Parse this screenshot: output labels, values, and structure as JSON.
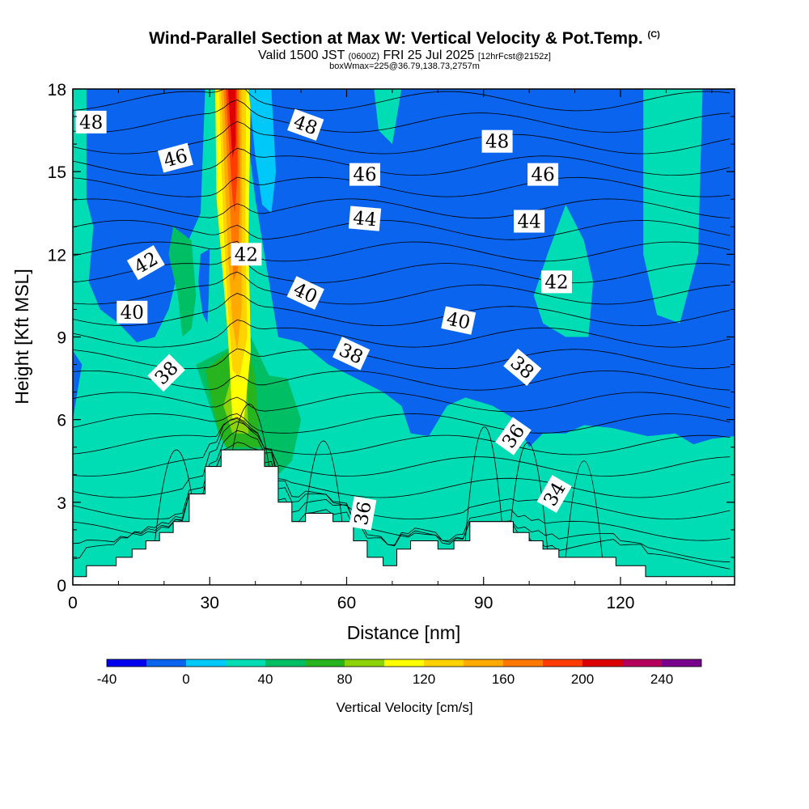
{
  "title": {
    "main": "Wind-Parallel Section at Max W: Vertical Velocity & Pot.Temp.",
    "copyright": "(C)",
    "valid_prefix": "Valid 1500 JST",
    "valid_utc": "(0600Z)",
    "valid_date": "FRI 25 Jul 2025",
    "forecast": "[12hrFcst@2152z]",
    "box": "boxWmax=225@36.79,138.73,2757m"
  },
  "chart_data": {
    "type": "heatmap",
    "xlabel": "Distance [nm]",
    "ylabel": "Height [Kft MSL]",
    "xlim": [
      0,
      145
    ],
    "ylim": [
      0,
      18
    ],
    "x_ticks": [
      "0",
      "30",
      "60",
      "90",
      "120"
    ],
    "y_ticks": [
      "0",
      "3",
      "6",
      "9",
      "12",
      "15",
      "18"
    ],
    "colorbar": {
      "label": "Vertical Velocity [cm/s]",
      "ticks": [
        "-40",
        "0",
        "40",
        "80",
        "120",
        "160",
        "200",
        "240"
      ],
      "levels": [
        -40,
        -20,
        0,
        20,
        40,
        60,
        80,
        100,
        120,
        140,
        160,
        180,
        200,
        220,
        240,
        260
      ],
      "colors": [
        "#0000ee",
        "#0a64ee",
        "#00c8f8",
        "#00dcb4",
        "#00be64",
        "#28b41e",
        "#8cd20a",
        "#ffff00",
        "#ffd200",
        "#ffaa00",
        "#ff7800",
        "#ff3c00",
        "#dc0000",
        "#b4005a",
        "#78008c"
      ]
    },
    "contour_labels": [
      {
        "text": "48",
        "x": 4,
        "y": 16.8,
        "rot": 0
      },
      {
        "text": "48",
        "x": 51,
        "y": 16.7,
        "rot": 20
      },
      {
        "text": "48",
        "x": 93,
        "y": 16.1,
        "rot": 0
      },
      {
        "text": "46",
        "x": 22.5,
        "y": 15.5,
        "rot": -15
      },
      {
        "text": "46",
        "x": 64,
        "y": 14.9,
        "rot": 0
      },
      {
        "text": "46",
        "x": 103,
        "y": 14.9,
        "rot": 0
      },
      {
        "text": "44",
        "x": 64,
        "y": 13.3,
        "rot": 5
      },
      {
        "text": "44",
        "x": 100,
        "y": 13.2,
        "rot": 0
      },
      {
        "text": "42",
        "x": 16,
        "y": 11.7,
        "rot": -30
      },
      {
        "text": "42",
        "x": 38,
        "y": 12,
        "rot": 0
      },
      {
        "text": "42",
        "x": 106,
        "y": 11,
        "rot": 0
      },
      {
        "text": "40",
        "x": 13,
        "y": 9.9,
        "rot": 0
      },
      {
        "text": "40",
        "x": 51,
        "y": 10.6,
        "rot": 25
      },
      {
        "text": "40",
        "x": 84.5,
        "y": 9.6,
        "rot": 12
      },
      {
        "text": "38",
        "x": 20.5,
        "y": 7.7,
        "rot": -45
      },
      {
        "text": "38",
        "x": 61,
        "y": 8.4,
        "rot": 25
      },
      {
        "text": "38",
        "x": 98.5,
        "y": 7.9,
        "rot": 40
      },
      {
        "text": "36",
        "x": 63.5,
        "y": 2.6,
        "rot": -80
      },
      {
        "text": "36",
        "x": 96.5,
        "y": 5.4,
        "rot": -55
      },
      {
        "text": "34",
        "x": 105.5,
        "y": 3.3,
        "rot": -60
      }
    ],
    "terrain_profile": [
      [
        0,
        0.3
      ],
      [
        3,
        0.3
      ],
      [
        3,
        0.7
      ],
      [
        9.5,
        0.7
      ],
      [
        9.5,
        1
      ],
      [
        13,
        1
      ],
      [
        13,
        1.3
      ],
      [
        16,
        1.3
      ],
      [
        16,
        1.6
      ],
      [
        19,
        1.6
      ],
      [
        19,
        1.9
      ],
      [
        22,
        1.9
      ],
      [
        22,
        2.3
      ],
      [
        25.5,
        2.3
      ],
      [
        25.5,
        3.3
      ],
      [
        29,
        3.3
      ],
      [
        29,
        4.3
      ],
      [
        32.5,
        4.3
      ],
      [
        32.5,
        4.9
      ],
      [
        42,
        4.9
      ],
      [
        42,
        4.3
      ],
      [
        45,
        4.3
      ],
      [
        45,
        3
      ],
      [
        48,
        3
      ],
      [
        48,
        2.3
      ],
      [
        51,
        2.3
      ],
      [
        51,
        2.6
      ],
      [
        57,
        2.6
      ],
      [
        57,
        2.3
      ],
      [
        61.5,
        2.3
      ],
      [
        61.5,
        1.6
      ],
      [
        64.5,
        1.6
      ],
      [
        64.5,
        1
      ],
      [
        68,
        1
      ],
      [
        68,
        0.7
      ],
      [
        71,
        0.7
      ],
      [
        71,
        1.3
      ],
      [
        74,
        1.3
      ],
      [
        74,
        1.6
      ],
      [
        80,
        1.6
      ],
      [
        80,
        1.3
      ],
      [
        83.5,
        1.3
      ],
      [
        83.5,
        1.6
      ],
      [
        87,
        1.6
      ],
      [
        87,
        2.3
      ],
      [
        96.5,
        2.3
      ],
      [
        96.5,
        1.9
      ],
      [
        100,
        1.9
      ],
      [
        100,
        1.6
      ],
      [
        103,
        1.6
      ],
      [
        103,
        1.3
      ],
      [
        106.5,
        1.3
      ],
      [
        106.5,
        1
      ],
      [
        119,
        1
      ],
      [
        119,
        0.7
      ],
      [
        125.5,
        0.7
      ],
      [
        125.5,
        0.3
      ],
      [
        145,
        0.3
      ]
    ],
    "w_regions": [
      {
        "level": 0,
        "poly": [
          [
            96,
            18
          ],
          [
            108,
            18
          ],
          [
            110,
            14
          ],
          [
            113,
            12.5
          ],
          [
            116,
            14
          ],
          [
            118,
            18
          ],
          [
            125,
            18
          ],
          [
            132,
            18
          ],
          [
            138,
            18
          ],
          [
            145,
            18
          ],
          [
            145,
            0
          ],
          [
            0,
            0
          ],
          [
            0,
            18
          ],
          [
            30,
            18
          ]
        ]
      },
      {
        "level": 2,
        "poly": [
          [
            0,
            18
          ],
          [
            3,
            18
          ],
          [
            3,
            14
          ],
          [
            4.5,
            13
          ],
          [
            3.5,
            11
          ],
          [
            6,
            10
          ],
          [
            10,
            9.5
          ],
          [
            14,
            8.8
          ],
          [
            18,
            9
          ],
          [
            21,
            10
          ],
          [
            24,
            12
          ],
          [
            28,
            13.5
          ],
          [
            29,
            18
          ],
          [
            37,
            18
          ],
          [
            40,
            14
          ],
          [
            43,
            11
          ],
          [
            45,
            9
          ],
          [
            50,
            8.8
          ],
          [
            56,
            8
          ],
          [
            62,
            7.5
          ],
          [
            68,
            7
          ],
          [
            72,
            6.5
          ],
          [
            74,
            5.5
          ],
          [
            78,
            5.4
          ],
          [
            82,
            6.5
          ],
          [
            86,
            6.8
          ],
          [
            92,
            6.5
          ],
          [
            97,
            6
          ],
          [
            100,
            5
          ],
          [
            103,
            5.5
          ],
          [
            108,
            5.5
          ],
          [
            112,
            5.8
          ],
          [
            118,
            5.7
          ],
          [
            126,
            5.4
          ],
          [
            132,
            5.5
          ],
          [
            136,
            5.1
          ],
          [
            140,
            5.3
          ],
          [
            145,
            5.4
          ],
          [
            145,
            0
          ],
          [
            0,
            0
          ],
          [
            0,
            6
          ],
          [
            2,
            8
          ],
          [
            0,
            8.5
          ]
        ]
      },
      {
        "level": 2,
        "poly": [
          [
            66,
            18
          ],
          [
            72,
            18
          ],
          [
            70,
            16
          ],
          [
            67,
            16.5
          ]
        ]
      },
      {
        "level": 2,
        "poly": [
          [
            104,
            12
          ],
          [
            108,
            13.8
          ],
          [
            112,
            12.5
          ],
          [
            114,
            11
          ],
          [
            113,
            9
          ],
          [
            108,
            9
          ],
          [
            103,
            9.5
          ],
          [
            101,
            10.5
          ]
        ]
      },
      {
        "level": 2,
        "poly": [
          [
            125,
            18
          ],
          [
            138,
            18
          ],
          [
            137,
            12
          ],
          [
            133,
            9.5
          ],
          [
            128,
            9.8
          ],
          [
            125,
            12
          ]
        ]
      },
      {
        "level": 3,
        "poly": [
          [
            23,
            10.5
          ],
          [
            21,
            12
          ],
          [
            22,
            13
          ],
          [
            26,
            12.5
          ],
          [
            27,
            10.5
          ],
          [
            26,
            9.3
          ],
          [
            24,
            9
          ]
        ]
      },
      {
        "level": 3,
        "poly": [
          [
            27,
            8
          ],
          [
            32,
            5.5
          ],
          [
            34,
            4.9
          ],
          [
            42,
            4.9
          ],
          [
            42,
            4.3
          ],
          [
            45,
            4.3
          ],
          [
            45,
            4
          ],
          [
            48,
            4.5
          ],
          [
            50,
            6
          ],
          [
            47,
            7.5
          ],
          [
            43,
            7.6
          ],
          [
            39,
            9
          ]
        ]
      },
      {
        "level": 4,
        "poly": [
          [
            29,
            7.8
          ],
          [
            32,
            5.5
          ],
          [
            33.5,
            5
          ],
          [
            41,
            5
          ],
          [
            40,
            7.5
          ],
          [
            38,
            9
          ]
        ]
      },
      {
        "level": 5,
        "poly": [
          [
            33,
            6.5
          ],
          [
            35,
            5.5
          ],
          [
            38.5,
            5.5
          ],
          [
            38,
            7.5
          ],
          [
            35.5,
            8
          ]
        ]
      },
      {
        "level": 6,
        "poly": [
          [
            31.2,
            18
          ],
          [
            39,
            18
          ],
          [
            38.5,
            12.5
          ],
          [
            39,
            8.5
          ],
          [
            37.5,
            6
          ],
          [
            35,
            6
          ],
          [
            34,
            9
          ],
          [
            32.5,
            12
          ],
          [
            31.5,
            14
          ]
        ]
      },
      {
        "level": 7,
        "poly": [
          [
            32,
            18
          ],
          [
            38,
            18
          ],
          [
            37.8,
            13
          ],
          [
            38.2,
            9
          ],
          [
            36.5,
            7.5
          ],
          [
            35,
            7.8
          ],
          [
            34,
            10
          ],
          [
            33,
            13
          ]
        ]
      },
      {
        "level": 8,
        "poly": [
          [
            32.5,
            18
          ],
          [
            37,
            18
          ],
          [
            37,
            14
          ],
          [
            37,
            10
          ],
          [
            36,
            8.5
          ],
          [
            35,
            9.5
          ],
          [
            34,
            12
          ],
          [
            33.5,
            14
          ]
        ]
      },
      {
        "level": 9,
        "poly": [
          [
            33,
            18
          ],
          [
            36.5,
            18
          ],
          [
            36.6,
            14
          ],
          [
            36.2,
            11.5
          ],
          [
            35.2,
            11
          ],
          [
            34.5,
            13.5
          ],
          [
            34,
            15
          ]
        ]
      },
      {
        "level": 10,
        "poly": [
          [
            33.5,
            18
          ],
          [
            36,
            18
          ],
          [
            36.1,
            15
          ],
          [
            35.5,
            13.5
          ],
          [
            35,
            14
          ]
        ]
      },
      {
        "level": 11,
        "poly": [
          [
            34,
            18
          ],
          [
            35.7,
            18
          ],
          [
            35.7,
            16
          ],
          [
            35,
            15.5
          ]
        ]
      },
      {
        "level": 1,
        "poly": [
          [
            38.5,
            18
          ],
          [
            43.5,
            18
          ],
          [
            44.5,
            15
          ],
          [
            43.5,
            13.5
          ],
          [
            41.5,
            13.8
          ],
          [
            40,
            15.5
          ]
        ]
      },
      {
        "level": 0,
        "poly": [
          [
            28,
            12
          ],
          [
            30,
            12.2
          ],
          [
            29.8,
            10.5
          ],
          [
            29.5,
            9.5
          ],
          [
            28.5,
            9.8
          ],
          [
            27.5,
            11
          ]
        ]
      },
      {
        "level": 0,
        "poly": [
          [
            73.7,
            8.4
          ],
          [
            74.3,
            8.8
          ],
          [
            75,
            8.5
          ],
          [
            74.8,
            7.9
          ],
          [
            74.2,
            7.8
          ]
        ]
      }
    ]
  }
}
